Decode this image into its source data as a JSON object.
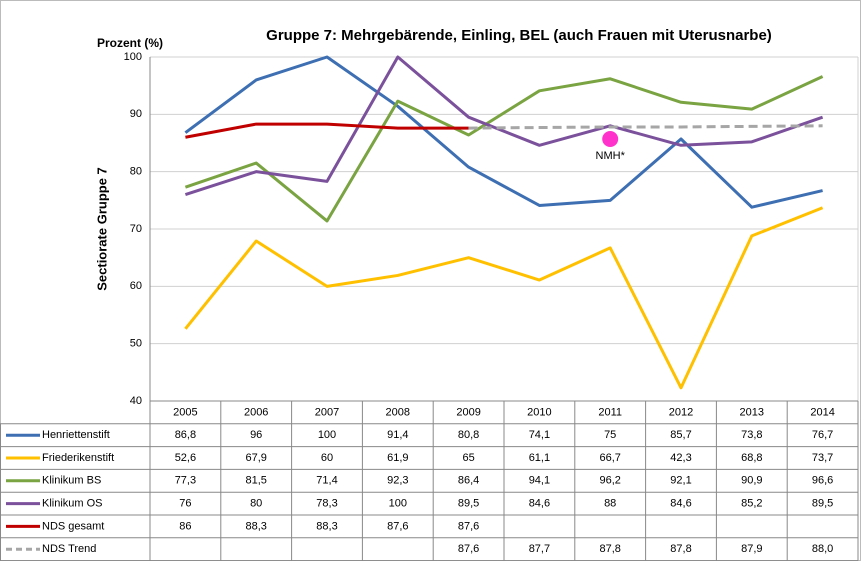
{
  "chart_data": {
    "type": "line",
    "title": "Gruppe 7: Mehrgebärende, Einling, BEL (auch Frauen mit Uterusnarbe)",
    "y_unit_label": "Prozent (%)",
    "y_label": "Sectiorate Gruppe 7",
    "categories": [
      "2005",
      "2006",
      "2007",
      "2008",
      "2009",
      "2010",
      "2011",
      "2012",
      "2013",
      "2014"
    ],
    "ylim": [
      40,
      100
    ],
    "yticks": [
      40,
      50,
      60,
      70,
      80,
      90,
      100
    ],
    "grid": true,
    "series": [
      {
        "name": "Henriettenstift",
        "color": "#3d6fb2",
        "dash": false,
        "values": [
          86.8,
          96,
          100,
          91.4,
          80.8,
          74.1,
          75,
          85.7,
          73.8,
          76.7
        ],
        "value_labels": [
          "86,8",
          "96",
          "100",
          "91,4",
          "80,8",
          "74,1",
          "75",
          "85,7",
          "73,8",
          "76,7"
        ]
      },
      {
        "name": "Friederikenstift",
        "color": "#ffc000",
        "dash": false,
        "values": [
          52.6,
          67.9,
          60,
          61.9,
          65,
          61.1,
          66.7,
          42.3,
          68.8,
          73.7
        ],
        "value_labels": [
          "52,6",
          "67,9",
          "60",
          "61,9",
          "65",
          "61,1",
          "66,7",
          "42,3",
          "68,8",
          "73,7"
        ]
      },
      {
        "name": "Klinikum BS",
        "color": "#7aa342",
        "dash": false,
        "values": [
          77.3,
          81.5,
          71.4,
          92.3,
          86.4,
          94.1,
          96.2,
          92.1,
          90.9,
          96.6
        ],
        "value_labels": [
          "77,3",
          "81,5",
          "71,4",
          "92,3",
          "86,4",
          "94,1",
          "96,2",
          "92,1",
          "90,9",
          "96,6"
        ]
      },
      {
        "name": "Klinikum OS",
        "color": "#7b519c",
        "dash": false,
        "values": [
          76,
          80,
          78.3,
          100,
          89.5,
          84.6,
          88,
          84.6,
          85.2,
          89.5
        ],
        "value_labels": [
          "76",
          "80",
          "78,3",
          "100",
          "89,5",
          "84,6",
          "88",
          "84,6",
          "85,2",
          "89,5"
        ]
      },
      {
        "name": "NDS gesamt",
        "color": "#c00000",
        "dash": false,
        "values": [
          86,
          88.3,
          88.3,
          87.6,
          87.6,
          null,
          null,
          null,
          null,
          null
        ],
        "value_labels": [
          "86",
          "88,3",
          "88,3",
          "87,6",
          "87,6",
          null,
          null,
          null,
          null,
          null
        ]
      },
      {
        "name": "NDS Trend",
        "color": "#a6a6a6",
        "dash": true,
        "values": [
          null,
          null,
          null,
          null,
          87.6,
          87.7,
          87.8,
          87.8,
          87.9,
          88.0
        ],
        "value_labels": [
          null,
          null,
          null,
          null,
          "87,6",
          "87,7",
          "87,8",
          "87,8",
          "87,9",
          "88,0"
        ]
      }
    ],
    "annotations": [
      {
        "text": "NMH*",
        "category": 6,
        "y": 85.7,
        "color": "#ff33cc"
      }
    ]
  }
}
